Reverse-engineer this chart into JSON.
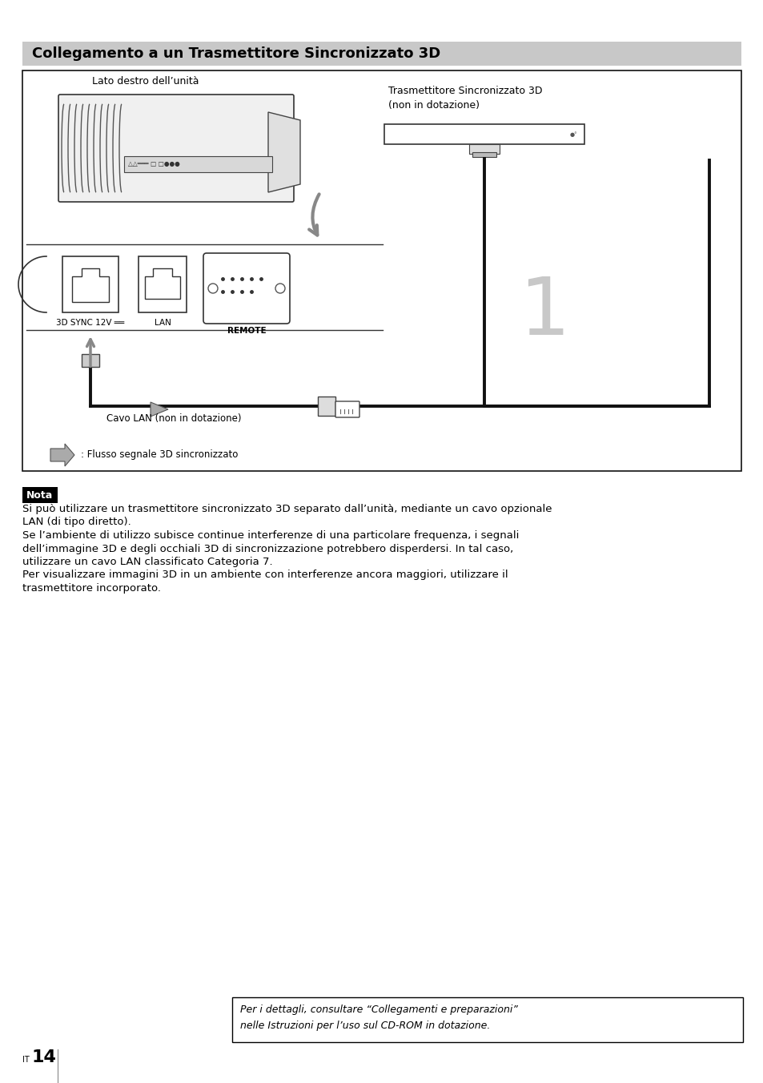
{
  "title": "Collegamento a un Trasmettitore Sincronizzato 3D",
  "title_bg": "#c8c8c8",
  "title_color": "#000000",
  "title_fontsize": 13,
  "page_bg": "#ffffff",
  "nota_label": "Nota",
  "nota_bg": "#000000",
  "nota_text_color": "#ffffff",
  "nota_fontsize": 9,
  "body_text_color": "#000000",
  "body_fontsize": 9.5,
  "body_lines": [
    "Si può utilizzare un trasmettitore sincronizzato 3D separato dall’unità, mediante un cavo opzionale",
    "LAN (di tipo diretto).",
    "Se l’ambiente di utilizzo subisce continue interferenze di una particolare frequenza, i segnali",
    "dell’immagine 3D e degli occhiali 3D di sincronizzazione potrebbero disperdersi. In tal caso,",
    "utilizzare un cavo LAN classificato Categoria 7.",
    "Per visualizzare immagini 3D in un ambiente con interferenze ancora maggiori, utilizzare il",
    "trasmettitore incorporato."
  ],
  "footer_text_line1": "Per i dettagli, consultare “Collegamenti e preparazioni”",
  "footer_text_line2": "nelle Istruzioni per l’uso sul CD-ROM in dotazione.",
  "footer_fontsize": 9,
  "label_unit_left": "Lato destro dell’unità",
  "label_transmitter_line1": "Trasmettitore Sincronizzato 3D",
  "label_transmitter_line2": "(non in dotazione)",
  "label_lan_cable": "Cavo LAN (non in dotazione)",
  "label_3dsync": "3D SYNC 12V ══",
  "label_lan": "LAN",
  "label_remote": "REMOTE",
  "label_flow_text": ": Flusso segnale 3D sincronizzato"
}
